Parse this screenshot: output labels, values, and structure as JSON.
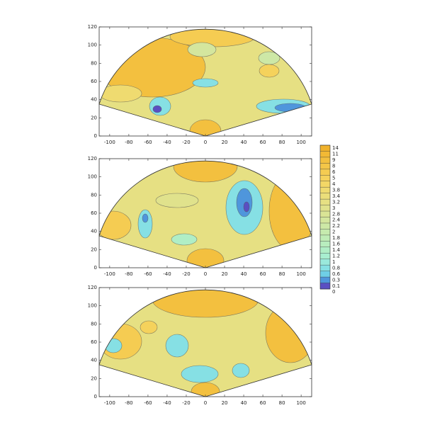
{
  "chart_data": [
    {
      "type": "contour",
      "xlim": [
        -111,
        111
      ],
      "ylim": [
        0,
        120
      ],
      "xticks": [
        -100,
        -80,
        -60,
        -40,
        -20,
        0,
        20,
        40,
        60,
        80,
        100
      ],
      "yticks": [
        0,
        20,
        40,
        60,
        80,
        100,
        120
      ]
    },
    {
      "type": "contour",
      "xlim": [
        -111,
        111
      ],
      "ylim": [
        0,
        120
      ],
      "xticks": [
        -100,
        -80,
        -60,
        -40,
        -20,
        0,
        20,
        40,
        60,
        80,
        100
      ],
      "yticks": [
        0,
        20,
        40,
        60,
        80,
        100,
        120
      ]
    },
    {
      "type": "contour",
      "xlim": [
        -111,
        111
      ],
      "ylim": [
        0,
        120
      ],
      "xticks": [
        -100,
        -80,
        -60,
        -40,
        -20,
        0,
        20,
        40,
        60,
        80,
        100
      ],
      "yticks": [
        0,
        20,
        40,
        60,
        80,
        100,
        120
      ]
    }
  ],
  "colorbar": {
    "levels": [
      14,
      11,
      9,
      8,
      6,
      5,
      4,
      3.8,
      3.4,
      3.2,
      3,
      2.8,
      2.4,
      2.2,
      2,
      1.8,
      1.6,
      1.4,
      1.2,
      1,
      0.8,
      0.6,
      0.3,
      0.1,
      0
    ],
    "colors": [
      "#f0b22c",
      "#f2b935",
      "#f3c03f",
      "#f4c648",
      "#f5cc52",
      "#f5d25c",
      "#f3d766",
      "#efdb70",
      "#ebde7a",
      "#e6e083",
      "#e0e28c",
      "#dae495",
      "#d4e69e",
      "#cde8a6",
      "#c6eaae",
      "#bfecb6",
      "#b8edbe",
      "#b0eec6",
      "#a8eed0",
      "#9ae9dc",
      "#86e0e4",
      "#6fcfe6",
      "#4f96dc",
      "#5a4fc2"
    ]
  }
}
